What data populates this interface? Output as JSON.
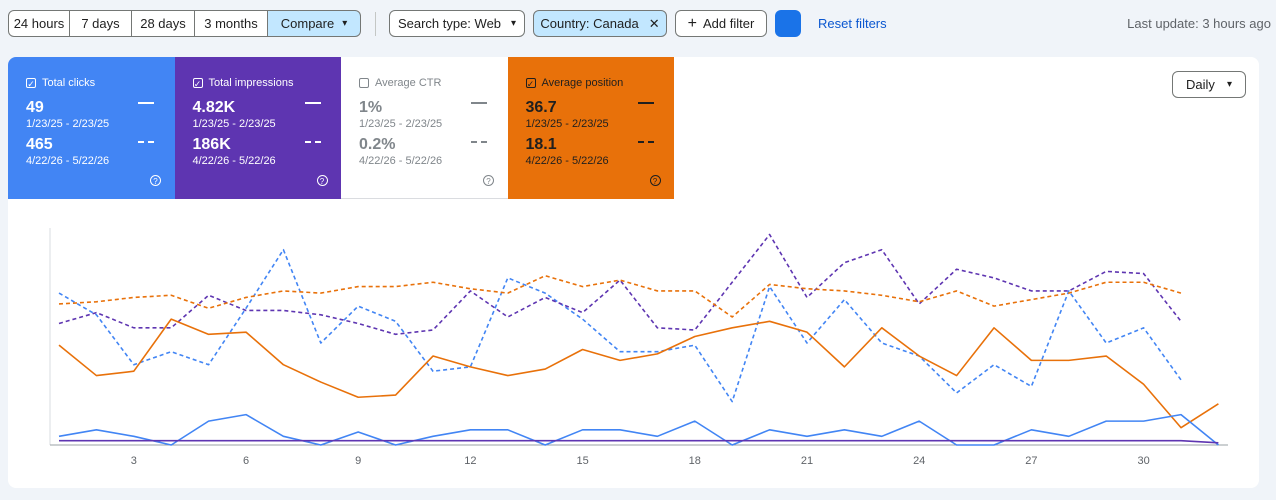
{
  "toolbar": {
    "ranges": [
      "24 hours",
      "7 days",
      "28 days",
      "3 months",
      "Compare"
    ],
    "search_type": "Search type: Web",
    "country": "Country: Canada",
    "add_filter": "Add filter",
    "reset": "Reset filters",
    "last_update": "Last update: 3 hours ago"
  },
  "metrics": [
    {
      "title": "Total clicks",
      "value": "49",
      "range": "1/23/25 - 2/23/25",
      "compare_value": "465",
      "compare_range": "4/22/26 - 5/22/26",
      "checked": true,
      "color": "#4285f4"
    },
    {
      "title": "Total impressions",
      "value": "4.82K",
      "range": "1/23/25 - 2/23/25",
      "compare_value": "186K",
      "compare_range": "4/22/26 - 5/22/26",
      "checked": true,
      "color": "#5e35b1"
    },
    {
      "title": "Average CTR",
      "value": "1%",
      "range": "1/23/25 - 2/23/25",
      "compare_value": "0.2%",
      "compare_range": "4/22/26 - 5/22/26",
      "checked": false,
      "color": "#ffffff"
    },
    {
      "title": "Average position",
      "value": "36.7",
      "range": "1/23/25 - 2/23/25",
      "compare_value": "18.1",
      "compare_range": "4/22/26 - 5/22/26",
      "checked": true,
      "color": "#e8710a"
    }
  ],
  "granularity": "Daily",
  "chart_data": {
    "type": "line",
    "categories": [
      null,
      null,
      "3",
      null,
      null,
      "6",
      null,
      null,
      "9",
      null,
      null,
      "12",
      null,
      null,
      "15",
      null,
      null,
      "18",
      null,
      null,
      "21",
      null,
      null,
      "24",
      null,
      null,
      "27",
      null,
      null,
      "30",
      null,
      null
    ],
    "ylim": [
      0,
      100
    ],
    "series": [
      {
        "color": "#4285f4",
        "dashed": true,
        "values": [
          70,
          60,
          37,
          43,
          37,
          63,
          90,
          47,
          64,
          57,
          34,
          36,
          77,
          70,
          58,
          43,
          43,
          46,
          20,
          73,
          47,
          67,
          47,
          41,
          24,
          37,
          27,
          71,
          47,
          54,
          30,
          null
        ]
      },
      {
        "color": "#5e35b1",
        "dashed": true,
        "values": [
          56,
          61,
          54,
          54,
          69,
          62,
          62,
          60,
          56,
          51,
          53,
          71,
          59,
          68,
          61,
          76,
          54,
          53,
          75,
          97,
          68,
          84,
          90,
          65,
          81,
          77,
          71,
          71,
          80,
          79,
          57,
          null
        ]
      },
      {
        "color": "#e8710a",
        "dashed": true,
        "values": [
          65,
          66,
          68,
          69,
          63,
          68,
          71,
          70,
          73,
          73,
          75,
          72,
          70,
          78,
          73,
          76,
          71,
          71,
          59,
          74,
          72,
          71,
          69,
          66,
          71,
          64,
          67,
          70,
          75,
          75,
          70,
          null
        ]
      },
      {
        "color": "#e8710a",
        "dashed": false,
        "values": [
          46,
          32,
          34,
          58,
          51,
          52,
          37,
          29,
          22,
          23,
          41,
          36,
          32,
          35,
          44,
          39,
          42,
          50,
          54,
          57,
          52,
          36,
          54,
          41,
          32,
          54,
          39,
          39,
          41,
          28,
          8,
          19
        ]
      },
      {
        "color": "#4285f4",
        "dashed": false,
        "values": [
          4,
          7,
          4,
          0,
          11,
          14,
          4,
          0,
          6,
          0,
          4,
          7,
          7,
          0,
          7,
          7,
          4,
          11,
          0,
          7,
          4,
          7,
          4,
          11,
          0,
          0,
          7,
          4,
          11,
          11,
          14,
          0
        ]
      },
      {
        "color": "#5e35b1",
        "dashed": false,
        "values": [
          2,
          2,
          2,
          2,
          2,
          2,
          2,
          2,
          2,
          2,
          2,
          2,
          2,
          2,
          2,
          2,
          2,
          2,
          2,
          2,
          2,
          2,
          2,
          2,
          2,
          2,
          2,
          2,
          2,
          2,
          2,
          1
        ]
      }
    ]
  }
}
